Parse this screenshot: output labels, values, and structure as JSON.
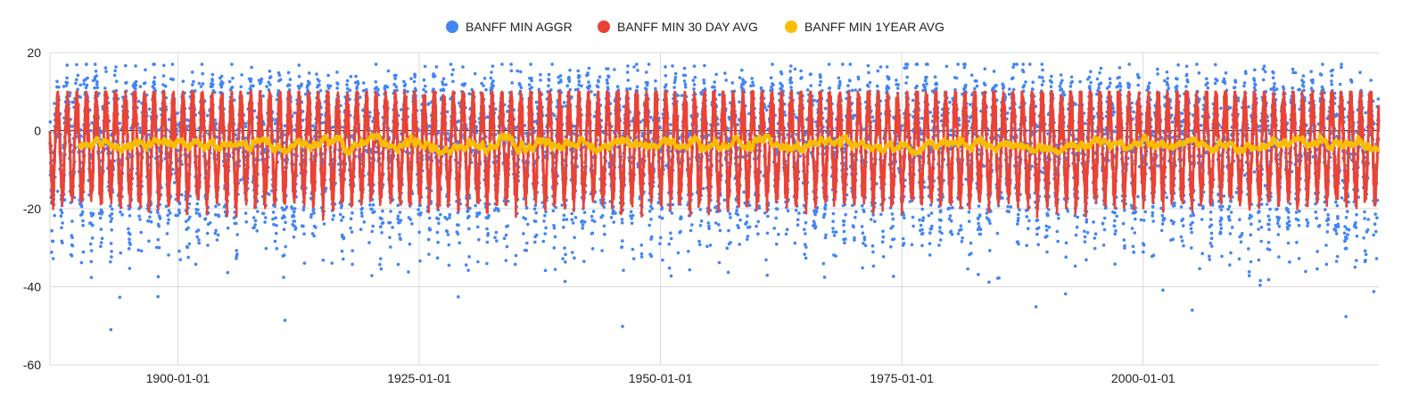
{
  "chart_data": {
    "type": "scatter",
    "title": "",
    "xlabel": "",
    "ylabel": "",
    "x_range": [
      "1886-10-01",
      "2024-06-01"
    ],
    "ylim": [
      -60,
      20
    ],
    "y_ticks": [
      20,
      0,
      -20,
      -40,
      -60
    ],
    "x_ticks": [
      "1900-01-01",
      "1925-01-01",
      "1950-01-01",
      "1975-01-01",
      "2000-01-01"
    ],
    "grid": true,
    "legend_position": "top",
    "series": [
      {
        "name": "BANFF MIN AGGR",
        "color": "#4285F4",
        "kind": "daily points",
        "seasonal_mean": -4,
        "seasonal_amplitude": 12,
        "daily_spread": 6,
        "extreme_min": -51,
        "extreme_max": 17
      },
      {
        "name": "BANFF MIN 30 DAY AVG",
        "color": "#EA4335",
        "kind": "rolling 30-day mean",
        "seasonal_mean": -4,
        "seasonal_amplitude": 12,
        "typical_range": [
          -25,
          8
        ]
      },
      {
        "name": "BANFF MIN 1YEAR AVG",
        "color": "#FBBC04",
        "kind": "rolling 1-year mean",
        "typical_range": [
          -6,
          -1
        ],
        "mean": -3.5
      }
    ]
  }
}
